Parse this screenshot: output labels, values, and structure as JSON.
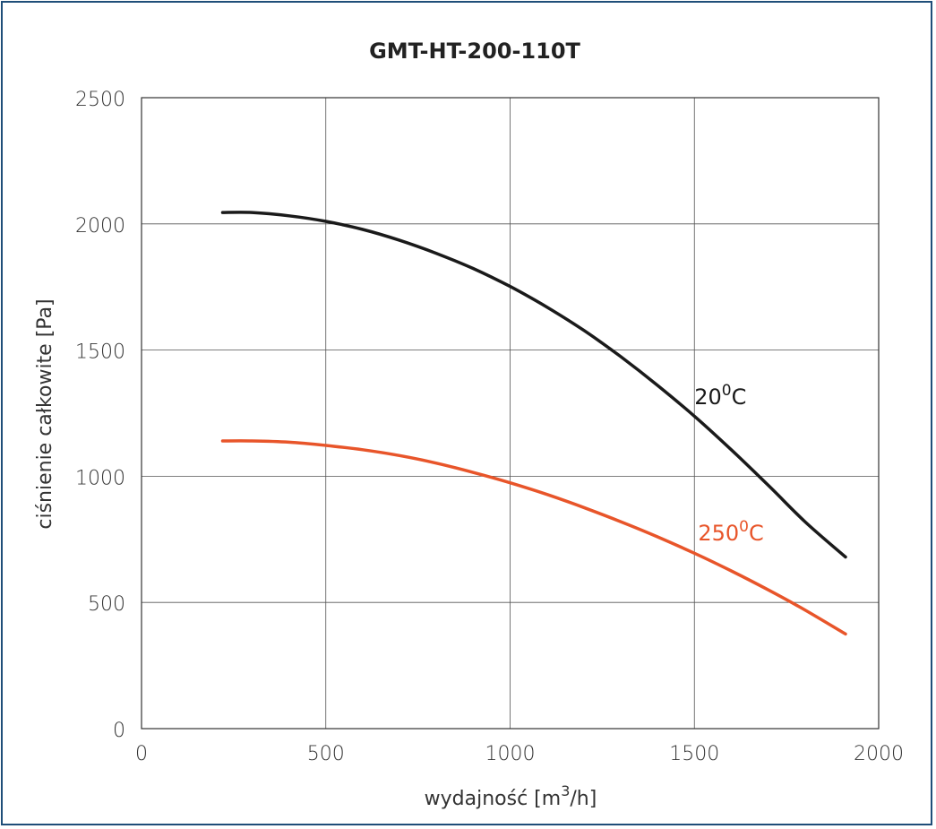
{
  "chart_data": {
    "type": "line",
    "title": "GMT-HT-200-110T",
    "xlabel_main": "wydajność [m",
    "xlabel_sup": "3",
    "xlabel_end": "/h]",
    "ylabel": "ciśnienie całkowite [Pa]",
    "xlim": [
      0,
      2000
    ],
    "ylim": [
      0,
      2500
    ],
    "x_ticks": [
      0,
      500,
      1000,
      1500,
      2000
    ],
    "y_ticks": [
      0,
      500,
      1000,
      1500,
      2000,
      2500
    ],
    "x_tick_labels": [
      "0",
      "500",
      "1000",
      "1500",
      "2000"
    ],
    "y_tick_labels": [
      "0",
      "500",
      "1000",
      "1500",
      "2000",
      "2500"
    ],
    "grid": true,
    "series": [
      {
        "label_main": "20",
        "label_sup": "0",
        "label_end": "C",
        "color": "#1a1a1a",
        "x": [
          220,
          300,
          400,
          500,
          600,
          700,
          800,
          900,
          1000,
          1100,
          1200,
          1300,
          1400,
          1500,
          1600,
          1700,
          1800,
          1910
        ],
        "y": [
          2045,
          2045,
          2032,
          2010,
          1978,
          1935,
          1883,
          1823,
          1752,
          1670,
          1578,
          1474,
          1360,
          1238,
          1105,
          965,
          820,
          680
        ]
      },
      {
        "label_main": "250",
        "label_sup": "0",
        "label_end": "C",
        "color": "#e8552a",
        "x": [
          220,
          300,
          400,
          500,
          600,
          700,
          800,
          900,
          1000,
          1100,
          1200,
          1300,
          1400,
          1500,
          1600,
          1700,
          1800,
          1910
        ],
        "y": [
          1140,
          1140,
          1135,
          1122,
          1105,
          1082,
          1052,
          1015,
          974,
          928,
          876,
          820,
          760,
          695,
          625,
          550,
          470,
          375
        ]
      }
    ]
  }
}
